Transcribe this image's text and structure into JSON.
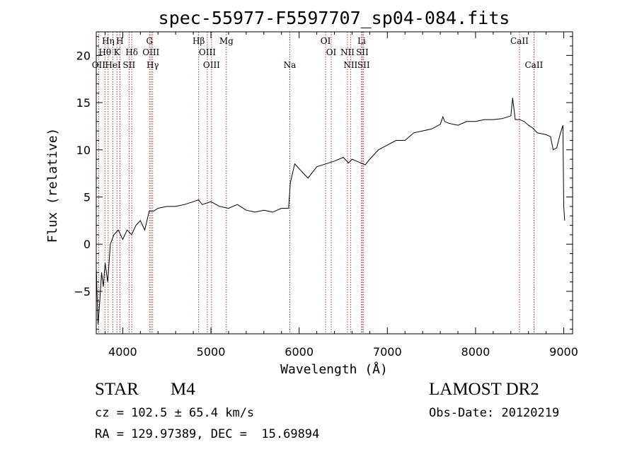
{
  "chart_data": {
    "type": "line",
    "title": "spec-55977-F5597707_sp04-084.fits",
    "xlabel": "Wavelength (Å)",
    "ylabel": "Flux (relative)",
    "xlim": [
      3700,
      9100
    ],
    "ylim": [
      -9.5,
      22.5
    ],
    "x_ticks": [
      4000,
      5000,
      6000,
      7000,
      8000,
      9000
    ],
    "y_ticks": [
      -5,
      0,
      5,
      10,
      15,
      20
    ],
    "grid": false,
    "series": [
      {
        "color": "#000000",
        "x": [
          3700,
          3720,
          3740,
          3760,
          3780,
          3800,
          3830,
          3860,
          3900,
          3950,
          4000,
          4050,
          4100,
          4150,
          4200,
          4250,
          4300,
          4350,
          4400,
          4500,
          4600,
          4700,
          4800,
          4860,
          4900,
          5000,
          5100,
          5200,
          5300,
          5400,
          5500,
          5600,
          5700,
          5800,
          5880,
          5900,
          5950,
          6000,
          6100,
          6200,
          6300,
          6400,
          6500,
          6560,
          6600,
          6700,
          6750,
          6800,
          6900,
          7000,
          7100,
          7200,
          7300,
          7400,
          7500,
          7600,
          7630,
          7650,
          7700,
          7800,
          7900,
          8000,
          8100,
          8200,
          8300,
          8400,
          8420,
          8450,
          8500,
          8550,
          8600,
          8650,
          8700,
          8800,
          8850,
          8880,
          8920,
          8960,
          8990,
          9000,
          9010
        ],
        "y": [
          -2.5,
          -8.5,
          -6,
          -3,
          -4.5,
          -2,
          -4,
          0,
          1,
          1.5,
          0.5,
          1.5,
          1,
          2,
          2.5,
          1.5,
          3.5,
          3.5,
          3.8,
          4,
          4,
          4.2,
          4.5,
          4.7,
          4.2,
          4.5,
          4,
          3.8,
          4.2,
          3.6,
          3.4,
          3.6,
          3.4,
          3.8,
          3.8,
          6.5,
          8.5,
          8,
          7,
          8.2,
          8.5,
          8.8,
          9.2,
          8.6,
          9,
          8.6,
          8.4,
          9,
          10,
          10.5,
          11,
          11,
          11.8,
          12,
          12.2,
          12.7,
          13.5,
          13,
          12.8,
          12.6,
          13,
          13,
          13.2,
          13.2,
          13.3,
          13.6,
          15.5,
          13.2,
          13.2,
          13,
          12.6,
          12.3,
          11.8,
          11.6,
          11.4,
          10,
          10.2,
          11.7,
          12.6,
          4,
          2.5
        ]
      }
    ],
    "line_markers": [
      {
        "label": "OII",
        "wavelength": 3727,
        "row": 3
      },
      {
        "label": "Hθ",
        "wavelength": 3798,
        "row": 2
      },
      {
        "label": "Hη",
        "wavelength": 3835,
        "row": 1
      },
      {
        "label": "HeI",
        "wavelength": 3889,
        "row": 3
      },
      {
        "label": "K",
        "wavelength": 3934,
        "row": 2
      },
      {
        "label": "H",
        "wavelength": 3968,
        "row": 1
      },
      {
        "label": "SII",
        "wavelength": 4072,
        "row": 3
      },
      {
        "label": "Hδ",
        "wavelength": 4102,
        "row": 2
      },
      {
        "label": "G",
        "wavelength": 4304,
        "row": 1
      },
      {
        "label": "OIII",
        "wavelength": 4320,
        "row": 2
      },
      {
        "label": "Hγ",
        "wavelength": 4340,
        "row": 3
      },
      {
        "label": "Hβ",
        "wavelength": 4861,
        "row": 1
      },
      {
        "label": "OIII",
        "wavelength": 4959,
        "row": 2
      },
      {
        "label": "OIII",
        "wavelength": 5007,
        "row": 3
      },
      {
        "label": "Mg",
        "wavelength": 5175,
        "row": 1
      },
      {
        "label": "Na",
        "wavelength": 5894,
        "row": 3
      },
      {
        "label": "OI",
        "wavelength": 6300,
        "row": 1
      },
      {
        "label": "OI",
        "wavelength": 6364,
        "row": 2
      },
      {
        "label": "NII",
        "wavelength": 6548,
        "row": 2
      },
      {
        "label": "NII",
        "wavelength": 6583,
        "row": 3
      },
      {
        "label": "Li",
        "wavelength": 6708,
        "row": 1
      },
      {
        "label": "SII",
        "wavelength": 6716,
        "row": 2
      },
      {
        "label": "SII",
        "wavelength": 6731,
        "row": 3
      },
      {
        "label": "CaII",
        "wavelength": 8498,
        "row": 1
      },
      {
        "label": "CaII",
        "wavelength": 8662,
        "row": 3
      }
    ]
  },
  "info": {
    "object_class": "STAR",
    "subclass": "M4",
    "survey": "LAMOST DR2",
    "cz": "cz = 102.5 ± 65.4 km/s",
    "obs_date": "Obs-Date: 20120219",
    "coords": "RA = 129.97389, DEC =  15.69894"
  }
}
